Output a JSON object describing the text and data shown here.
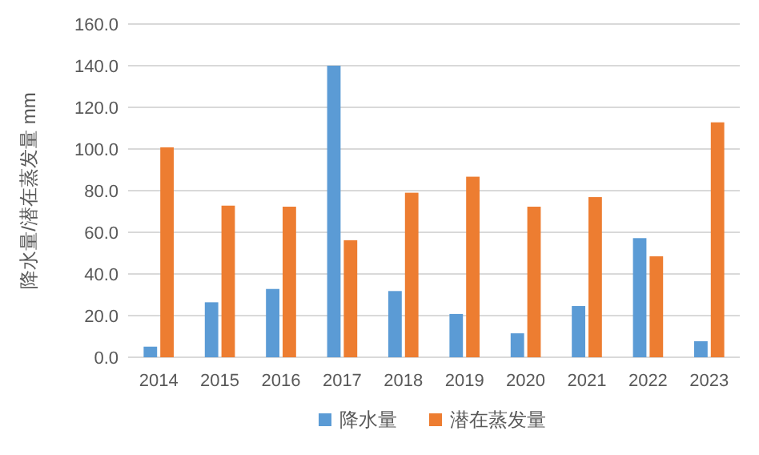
{
  "chart_data": {
    "type": "bar",
    "ylabel": "降水量/潜在蒸发量 mm",
    "categories": [
      "2014",
      "2015",
      "2016",
      "2017",
      "2018",
      "2019",
      "2020",
      "2021",
      "2022",
      "2023"
    ],
    "series": [
      {
        "name": "降水量",
        "color": "#5b9bd5",
        "values": [
          5.1,
          26.4,
          32.8,
          140.0,
          31.8,
          20.8,
          11.5,
          24.6,
          57.2,
          7.7
        ]
      },
      {
        "name": "潜在蒸发量",
        "color": "#ed7d31",
        "values": [
          100.8,
          72.8,
          72.3,
          56.2,
          79.0,
          86.7,
          72.3,
          76.9,
          48.5,
          112.8
        ]
      }
    ],
    "ylim": [
      0,
      160
    ],
    "yticks": [
      {
        "value": 0,
        "label": "0.0"
      },
      {
        "value": 20,
        "label": "20.0"
      },
      {
        "value": 40,
        "label": "40.0"
      },
      {
        "value": 60,
        "label": "60.0"
      },
      {
        "value": 80,
        "label": "80.0"
      },
      {
        "value": 100,
        "label": "100.0"
      },
      {
        "value": 120,
        "label": "120.0"
      },
      {
        "value": 140,
        "label": "140.0"
      },
      {
        "value": 160,
        "label": "160.0"
      }
    ],
    "grid": "y",
    "legend": "bottom"
  }
}
